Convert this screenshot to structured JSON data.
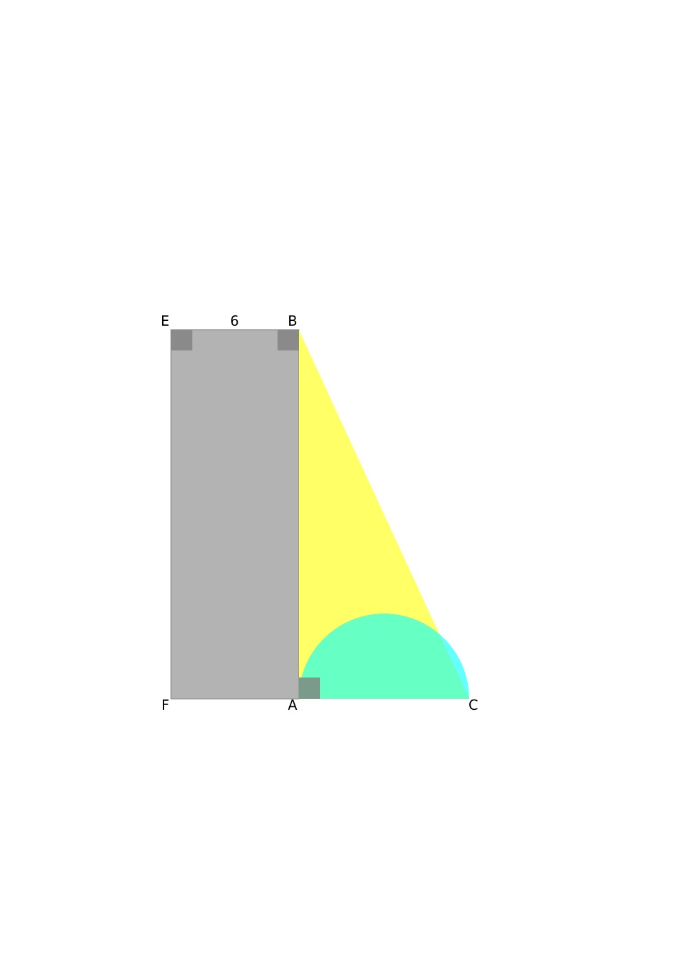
{
  "figure": {
    "points": {
      "E": "E",
      "B": "B",
      "F": "F",
      "A": "A",
      "C": "C"
    },
    "measurements": {
      "EB": "6"
    },
    "colors": {
      "rectangle_fill": "#b3b3b3",
      "rectangle_stroke": "#9a9a9a",
      "triangle_fill": "#ffff66",
      "semicircle_fill": "#00ffff",
      "semicircle_overlap_fill": "#66ffc4",
      "right_angle_marker": "#8a8a8a",
      "right_angle_marker_overlap": "#7a9a8a",
      "label_color": "#000000"
    },
    "shapes": [
      "rectangle",
      "right-triangle",
      "semicircle"
    ]
  }
}
